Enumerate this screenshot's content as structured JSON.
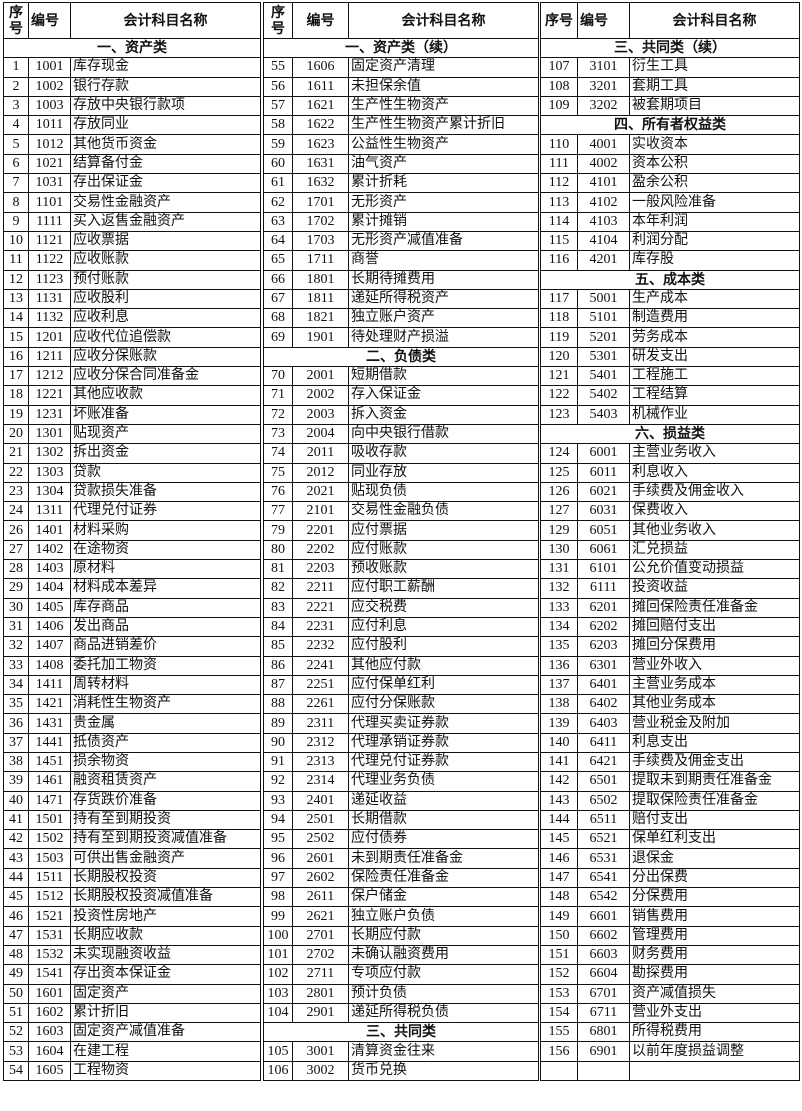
{
  "headers": {
    "seq_stacked": [
      "序",
      "号"
    ],
    "seq": "序号",
    "code": "编号",
    "name": "会计科目名称"
  },
  "columns": [
    [
      {
        "section": "一、资产类"
      },
      [
        "1",
        "1001",
        "库存现金"
      ],
      [
        "2",
        "1002",
        "银行存款"
      ],
      [
        "3",
        "1003",
        "存放中央银行款项"
      ],
      [
        "4",
        "1011",
        "存放同业"
      ],
      [
        "5",
        "1012",
        "其他货币资金"
      ],
      [
        "6",
        "1021",
        "结算备付金"
      ],
      [
        "7",
        "1031",
        "存出保证金"
      ],
      [
        "8",
        "1101",
        "交易性金融资产"
      ],
      [
        "9",
        "1111",
        "买入返售金融资产"
      ],
      [
        "10",
        "1121",
        "应收票据"
      ],
      [
        "11",
        "1122",
        "应收账款"
      ],
      [
        "12",
        "1123",
        "预付账款"
      ],
      [
        "13",
        "1131",
        "应收股利"
      ],
      [
        "14",
        "1132",
        "应收利息"
      ],
      [
        "15",
        "1201",
        "应收代位追偿款"
      ],
      [
        "16",
        "1211",
        "应收分保账款"
      ],
      [
        "17",
        "1212",
        "应收分保合同准备金"
      ],
      [
        "18",
        "1221",
        "其他应收款"
      ],
      [
        "19",
        "1231",
        "坏账准备"
      ],
      [
        "20",
        "1301",
        "贴现资产"
      ],
      [
        "21",
        "1302",
        "拆出资金"
      ],
      [
        "22",
        "1303",
        "贷款"
      ],
      [
        "23",
        "1304",
        "贷款损失准备"
      ],
      [
        "24",
        "1311",
        "代理兑付证券"
      ],
      [
        "26",
        "1401",
        "材料采购"
      ],
      [
        "27",
        "1402",
        "在途物资"
      ],
      [
        "28",
        "1403",
        "原材料"
      ],
      [
        "29",
        "1404",
        "材料成本差异"
      ],
      [
        "30",
        "1405",
        "库存商品"
      ],
      [
        "31",
        "1406",
        "发出商品"
      ],
      [
        "32",
        "1407",
        "商品进销差价"
      ],
      [
        "33",
        "1408",
        "委托加工物资"
      ],
      [
        "34",
        "1411",
        "周转材料"
      ],
      [
        "35",
        "1421",
        "消耗性生物资产"
      ],
      [
        "36",
        "1431",
        "贵金属"
      ],
      [
        "37",
        "1441",
        "抵债资产"
      ],
      [
        "38",
        "1451",
        "损余物资"
      ],
      [
        "39",
        "1461",
        "融资租赁资产"
      ],
      [
        "40",
        "1471",
        "存货跌价准备"
      ],
      [
        "41",
        "1501",
        "持有至到期投资"
      ],
      [
        "42",
        "1502",
        "持有至到期投资减值准备"
      ],
      [
        "43",
        "1503",
        "可供出售金融资产"
      ],
      [
        "44",
        "1511",
        "长期股权投资"
      ],
      [
        "45",
        "1512",
        "长期股权投资减值准备"
      ],
      [
        "46",
        "1521",
        "投资性房地产"
      ],
      [
        "47",
        "1531",
        "长期应收款"
      ],
      [
        "48",
        "1532",
        "未实现融资收益"
      ],
      [
        "49",
        "1541",
        "存出资本保证金"
      ],
      [
        "50",
        "1601",
        "固定资产"
      ],
      [
        "51",
        "1602",
        "累计折旧"
      ],
      [
        "52",
        "1603",
        "固定资产减值准备"
      ],
      [
        "53",
        "1604",
        "在建工程"
      ],
      [
        "54",
        "1605",
        "工程物资"
      ]
    ],
    [
      {
        "section": "一、资产类（续）"
      },
      [
        "55",
        "1606",
        "固定资产清理"
      ],
      [
        "56",
        "1611",
        "未担保余值"
      ],
      [
        "57",
        "1621",
        "生产性生物资产"
      ],
      [
        "58",
        "1622",
        "生产性生物资产累计折旧"
      ],
      [
        "59",
        "1623",
        "公益性生物资产"
      ],
      [
        "60",
        "1631",
        "油气资产"
      ],
      [
        "61",
        "1632",
        "累计折耗"
      ],
      [
        "62",
        "1701",
        "无形资产"
      ],
      [
        "63",
        "1702",
        "累计摊销"
      ],
      [
        "64",
        "1703",
        "无形资产减值准备"
      ],
      [
        "65",
        "1711",
        "商誉"
      ],
      [
        "66",
        "1801",
        "长期待摊费用"
      ],
      [
        "67",
        "1811",
        "递延所得税资产"
      ],
      [
        "68",
        "1821",
        "独立账户资产"
      ],
      [
        "69",
        "1901",
        "待处理财产损溢"
      ],
      {
        "section": "二、负债类"
      },
      [
        "70",
        "2001",
        "短期借款"
      ],
      [
        "71",
        "2002",
        "存入保证金"
      ],
      [
        "72",
        "2003",
        "拆入资金"
      ],
      [
        "73",
        "2004",
        "向中央银行借款"
      ],
      [
        "74",
        "2011",
        "吸收存款"
      ],
      [
        "75",
        "2012",
        "同业存放"
      ],
      [
        "76",
        "2021",
        "贴现负债"
      ],
      [
        "77",
        "2101",
        "交易性金融负债"
      ],
      [
        "79",
        "2201",
        "应付票据"
      ],
      [
        "80",
        "2202",
        "应付账款"
      ],
      [
        "81",
        "2203",
        "预收账款"
      ],
      [
        "82",
        "2211",
        "应付职工薪酬"
      ],
      [
        "83",
        "2221",
        "应交税费"
      ],
      [
        "84",
        "2231",
        "应付利息"
      ],
      [
        "85",
        "2232",
        "应付股利"
      ],
      [
        "86",
        "2241",
        "其他应付款"
      ],
      [
        "87",
        "2251",
        "应付保单红利"
      ],
      [
        "88",
        "2261",
        "应付分保账款"
      ],
      [
        "89",
        "2311",
        "代理买卖证券款"
      ],
      [
        "90",
        "2312",
        "代理承销证券款"
      ],
      [
        "91",
        "2313",
        "代理兑付证券款"
      ],
      [
        "92",
        "2314",
        "代理业务负债"
      ],
      [
        "93",
        "2401",
        "递延收益"
      ],
      [
        "94",
        "2501",
        "长期借款"
      ],
      [
        "95",
        "2502",
        "应付债券"
      ],
      [
        "96",
        "2601",
        "未到期责任准备金"
      ],
      [
        "97",
        "2602",
        "保险责任准备金"
      ],
      [
        "98",
        "2611",
        "保户储金"
      ],
      [
        "99",
        "2621",
        "独立账户负债"
      ],
      [
        "100",
        "2701",
        "长期应付款"
      ],
      [
        "101",
        "2702",
        "未确认融资费用"
      ],
      [
        "102",
        "2711",
        "专项应付款"
      ],
      [
        "103",
        "2801",
        "预计负债"
      ],
      [
        "104",
        "2901",
        "递延所得税负债"
      ],
      {
        "section": "三、共同类"
      },
      [
        "105",
        "3001",
        "清算资金往来"
      ],
      [
        "106",
        "3002",
        "货币兑换"
      ]
    ],
    [
      {
        "section": "三、共同类（续）"
      },
      [
        "107",
        "3101",
        "衍生工具"
      ],
      [
        "108",
        "3201",
        "套期工具"
      ],
      [
        "109",
        "3202",
        "被套期项目"
      ],
      {
        "section": "四、所有者权益类"
      },
      [
        "110",
        "4001",
        "实收资本"
      ],
      [
        "111",
        "4002",
        "资本公积"
      ],
      [
        "112",
        "4101",
        "盈余公积"
      ],
      [
        "113",
        "4102",
        "一般风险准备"
      ],
      [
        "114",
        "4103",
        "本年利润"
      ],
      [
        "115",
        "4104",
        "利润分配"
      ],
      [
        "116",
        "4201",
        "库存股"
      ],
      {
        "section": "五、成本类"
      },
      [
        "117",
        "5001",
        "生产成本"
      ],
      [
        "118",
        "5101",
        "制造费用"
      ],
      [
        "119",
        "5201",
        "劳务成本"
      ],
      [
        "120",
        "5301",
        "研发支出"
      ],
      [
        "121",
        "5401",
        "工程施工"
      ],
      [
        "122",
        "5402",
        "工程结算"
      ],
      [
        "123",
        "5403",
        "机械作业"
      ],
      {
        "section": "六、损益类"
      },
      [
        "124",
        "6001",
        "主营业务收入"
      ],
      [
        "125",
        "6011",
        "利息收入"
      ],
      [
        "126",
        "6021",
        "手续费及佣金收入"
      ],
      [
        "127",
        "6031",
        "保费收入"
      ],
      [
        "129",
        "6051",
        "其他业务收入"
      ],
      [
        "130",
        "6061",
        "汇兑损益"
      ],
      [
        "131",
        "6101",
        "公允价值变动损益"
      ],
      [
        "132",
        "6111",
        "投资收益"
      ],
      [
        "133",
        "6201",
        "摊回保险责任准备金"
      ],
      [
        "134",
        "6202",
        "摊回赔付支出"
      ],
      [
        "135",
        "6203",
        "摊回分保费用"
      ],
      [
        "136",
        "6301",
        "营业外收入"
      ],
      [
        "137",
        "6401",
        "主营业务成本"
      ],
      [
        "138",
        "6402",
        "其他业务成本"
      ],
      [
        "139",
        "6403",
        "营业税金及附加"
      ],
      [
        "140",
        "6411",
        "利息支出"
      ],
      [
        "141",
        "6421",
        "手续费及佣金支出"
      ],
      [
        "142",
        "6501",
        "提取未到期责任准备金"
      ],
      [
        "143",
        "6502",
        "提取保险责任准备金"
      ],
      [
        "144",
        "6511",
        "赔付支出"
      ],
      [
        "145",
        "6521",
        "保单红利支出"
      ],
      [
        "146",
        "6531",
        "退保金"
      ],
      [
        "147",
        "6541",
        "分出保费"
      ],
      [
        "148",
        "6542",
        "分保费用"
      ],
      [
        "149",
        "6601",
        "销售费用"
      ],
      [
        "150",
        "6602",
        "管理费用"
      ],
      [
        "151",
        "6603",
        "财务费用"
      ],
      [
        "152",
        "6604",
        "勘探费用"
      ],
      [
        "153",
        "6701",
        "资产减值损失"
      ],
      [
        "154",
        "6711",
        "营业外支出"
      ],
      [
        "155",
        "6801",
        "所得税费用"
      ],
      [
        "156",
        "6901",
        "以前年度损益调整"
      ],
      [
        "",
        "",
        ""
      ]
    ]
  ]
}
